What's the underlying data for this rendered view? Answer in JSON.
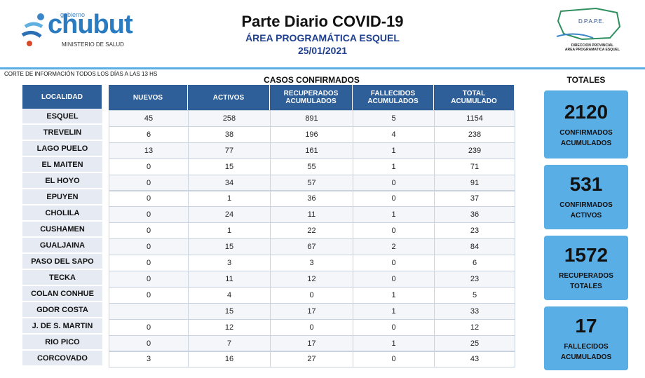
{
  "header": {
    "logo_small": "gobierno",
    "logo": "chubut",
    "ministry": "MINISTERIO DE SALUD",
    "title": "Parte Diario COVID-19",
    "subtitle": "ÁREA PROGRAMÁTICA ESQUEL",
    "date": "25/01/2021",
    "right_logo": "D.P.A.P.E.",
    "right_line1": "DIRECCION PROVINCIAL",
    "right_line2": "AREA PROGRAMATICA ESQUEL"
  },
  "note": "CORTE DE INFORMACIÓN TODOS LOS DÍAS A LAS 13 HS",
  "table": {
    "title": "CASOS CONFIRMADOS",
    "localidad_header": "LOCALIDAD",
    "columns": [
      [
        "NUEVOS"
      ],
      [
        "ACTIVOS"
      ],
      [
        "RECUPERADOS",
        "ACUMULADOS"
      ],
      [
        "FALLECIDOS",
        "ACUMULADOS"
      ],
      [
        "TOTAL",
        "ACUMULADO"
      ]
    ],
    "localidades": [
      "ESQUEL",
      "TREVELIN",
      "LAGO PUELO",
      "EL MAITEN",
      "EL HOYO",
      "EPUYEN",
      "CHOLILA",
      "CUSHAMEN",
      "GUALJAINA",
      "PASO DEL SAPO",
      "TECKA",
      "COLAN CONHUE",
      "GDOR COSTA",
      "J. DE S. MARTIN",
      "RIO PICO",
      "CORCOVADO"
    ],
    "rows": [
      [
        45,
        258,
        891,
        5,
        1154
      ],
      [
        6,
        38,
        196,
        4,
        238
      ],
      [
        13,
        77,
        161,
        1,
        239
      ],
      [
        0,
        15,
        55,
        1,
        71
      ],
      [
        0,
        34,
        57,
        0,
        91
      ],
      [
        0,
        1,
        36,
        0,
        37
      ],
      [
        0,
        24,
        11,
        1,
        36
      ],
      [
        0,
        1,
        22,
        0,
        23
      ],
      [
        0,
        15,
        67,
        2,
        84
      ],
      [
        0,
        3,
        3,
        0,
        6
      ],
      [
        0,
        11,
        12,
        0,
        23
      ],
      [
        0,
        4,
        0,
        1,
        5
      ],
      [
        null,
        15,
        17,
        1,
        33
      ],
      [
        0,
        12,
        0,
        0,
        12
      ],
      [
        0,
        7,
        17,
        1,
        25
      ],
      [
        3,
        16,
        27,
        0,
        43
      ]
    ]
  },
  "totals": {
    "title": "TOTALES",
    "cards": [
      {
        "value": 2120,
        "label": [
          "CONFIRMADOS",
          "ACUMULADOS"
        ]
      },
      {
        "value": 531,
        "label": [
          "CONFIRMADOS",
          "ACTIVOS"
        ]
      },
      {
        "value": 1572,
        "label": [
          "RECUPERADOS",
          "TOTALES"
        ]
      },
      {
        "value": 17,
        "label": [
          "FALLECIDOS",
          "ACUMULADOS"
        ]
      }
    ]
  }
}
